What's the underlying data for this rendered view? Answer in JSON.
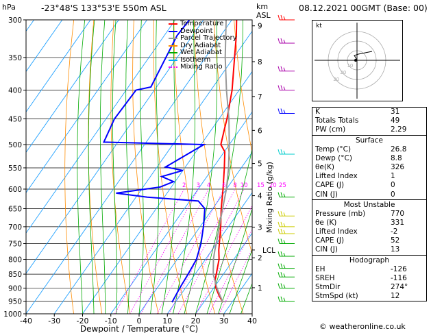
{
  "header": {
    "hpa_label": "hPa",
    "location": "-23°48'S  133°53'E  550m  ASL",
    "km_label": "km",
    "asl_label": "ASL",
    "datetime": "08.12.2021  00GMT  (Base: 00)"
  },
  "legend": {
    "items": [
      {
        "label": "Temperature",
        "color": "#ff0000",
        "style": "solid"
      },
      {
        "label": "Dewpoint",
        "color": "#0000ff",
        "style": "solid"
      },
      {
        "label": "Parcel Trajectory",
        "color": "#999999",
        "style": "solid"
      },
      {
        "label": "Dry Adiabat",
        "color": "#ff8c00",
        "style": "solid"
      },
      {
        "label": "Wet Adiabat",
        "color": "#00aa00",
        "style": "solid"
      },
      {
        "label": "Isotherm",
        "color": "#00aaff",
        "style": "solid"
      },
      {
        "label": "Mixing Ratio",
        "color": "#ff00ff",
        "style": "dotted"
      }
    ]
  },
  "axes": {
    "xlabel": "Dewpoint  /  Temperature  (°C)",
    "mixing_axis_label": "Mixing Ratio  (g/kg)",
    "lcl_label": "LCL",
    "pressure_ticks": [
      "300",
      "350",
      "400",
      "450",
      "500",
      "550",
      "600",
      "650",
      "700",
      "750",
      "800",
      "850",
      "900",
      "950",
      "1000"
    ],
    "temp_ticks": [
      "-40",
      "-30",
      "-20",
      "-10",
      "0",
      "10",
      "20",
      "30",
      "40"
    ],
    "km_ticks": [
      "9",
      "8",
      "7",
      "6",
      "5",
      "4",
      "3",
      "2",
      "1"
    ],
    "mixing_ticks": [
      "2",
      "3",
      "4",
      "6",
      "8",
      "10",
      "15",
      "20",
      "25"
    ]
  },
  "chart_data": {
    "type": "line",
    "title": "-23°48'S  133°53'E  550m  ASL",
    "xlabel": "Dewpoint  /  Temperature  (°C)",
    "ylabel": "hPa",
    "xlim": [
      -40,
      40
    ],
    "ylim": [
      1000,
      300
    ],
    "y_scale": "log",
    "grid": true,
    "legend_position": "top-left",
    "series": [
      {
        "name": "Temperature",
        "color": "#ff0000",
        "points": [
          [
            954,
            26.8
          ],
          [
            930,
            24.0
          ],
          [
            900,
            20.8
          ],
          [
            870,
            18.5
          ],
          [
            845,
            17.2
          ],
          [
            800,
            14.8
          ],
          [
            770,
            12.4
          ],
          [
            750,
            11.0
          ],
          [
            700,
            7.3
          ],
          [
            650,
            3.0
          ],
          [
            600,
            -1.2
          ],
          [
            550,
            -6.0
          ],
          [
            515,
            -9.8
          ],
          [
            500,
            -13.0
          ],
          [
            470,
            -15.5
          ],
          [
            450,
            -17.2
          ],
          [
            400,
            -22.5
          ],
          [
            350,
            -29.7
          ],
          [
            320,
            -34.5
          ],
          [
            300,
            -38.3
          ]
        ]
      },
      {
        "name": "Dewpoint",
        "color": "#0000ff",
        "points": [
          [
            954,
            8.8
          ],
          [
            900,
            8.0
          ],
          [
            850,
            7.5
          ],
          [
            800,
            6.8
          ],
          [
            750,
            4.5
          ],
          [
            700,
            1.2
          ],
          [
            650,
            -2.8
          ],
          [
            630,
            -7.0
          ],
          [
            620,
            -26.0
          ],
          [
            610,
            -38.0
          ],
          [
            595,
            -24.0
          ],
          [
            582,
            -20.5
          ],
          [
            570,
            -26.0
          ],
          [
            556,
            -20.0
          ],
          [
            548,
            -27.0
          ],
          [
            500,
            -19.0
          ],
          [
            495,
            -55.0
          ],
          [
            450,
            -57.0
          ],
          [
            400,
            -56.5
          ],
          [
            395,
            -52.0
          ],
          [
            350,
            -54.0
          ],
          [
            320,
            -55.5
          ],
          [
            300,
            -55.0
          ]
        ]
      },
      {
        "name": "Parcel Trajectory",
        "color": "#999999",
        "points": [
          [
            954,
            26.8
          ],
          [
            900,
            21.2
          ],
          [
            850,
            16.4
          ],
          [
            800,
            12.8
          ],
          [
            770,
            11.0
          ],
          [
            750,
            9.9
          ],
          [
            700,
            6.8
          ],
          [
            650,
            3.5
          ],
          [
            600,
            0.0
          ],
          [
            550,
            -4.5
          ],
          [
            500,
            -10.0
          ],
          [
            450,
            -16.5
          ],
          [
            400,
            -24.5
          ],
          [
            350,
            -33.0
          ],
          [
            300,
            -42.0
          ]
        ]
      }
    ]
  },
  "hodograph": {
    "label": "kt",
    "ring_labels": [
      "10",
      "20",
      "30"
    ]
  },
  "indices": {
    "rows": [
      {
        "label": "K",
        "value": "31"
      },
      {
        "label": "Totals Totals",
        "value": "49"
      },
      {
        "label": "PW (cm)",
        "value": "2.29"
      }
    ]
  },
  "surface": {
    "title": "Surface",
    "rows": [
      {
        "label": "Temp (°C)",
        "value": "26.8"
      },
      {
        "label": "Dewp (°C)",
        "value": "8.8"
      },
      {
        "label": "θe(K)",
        "value": "326"
      },
      {
        "label": "Lifted Index",
        "value": "1"
      },
      {
        "label": "CAPE (J)",
        "value": "0"
      },
      {
        "label": "CIN (J)",
        "value": "0"
      }
    ]
  },
  "most_unstable": {
    "title": "Most Unstable",
    "rows": [
      {
        "label": "Pressure (mb)",
        "value": "770"
      },
      {
        "label": "θe (K)",
        "value": "331"
      },
      {
        "label": "Lifted Index",
        "value": "-2"
      },
      {
        "label": "CAPE (J)",
        "value": "52"
      },
      {
        "label": "CIN (J)",
        "value": "13"
      }
    ]
  },
  "hodograph_table": {
    "title": "Hodograph",
    "rows": [
      {
        "label": "EH",
        "value": "-126"
      },
      {
        "label": "SREH",
        "value": "-116"
      },
      {
        "label": "StmDir",
        "value": "274°"
      },
      {
        "label": "StmSpd (kt)",
        "value": "12"
      }
    ]
  },
  "footer": {
    "copyright": "© weatheronline.co.uk"
  }
}
